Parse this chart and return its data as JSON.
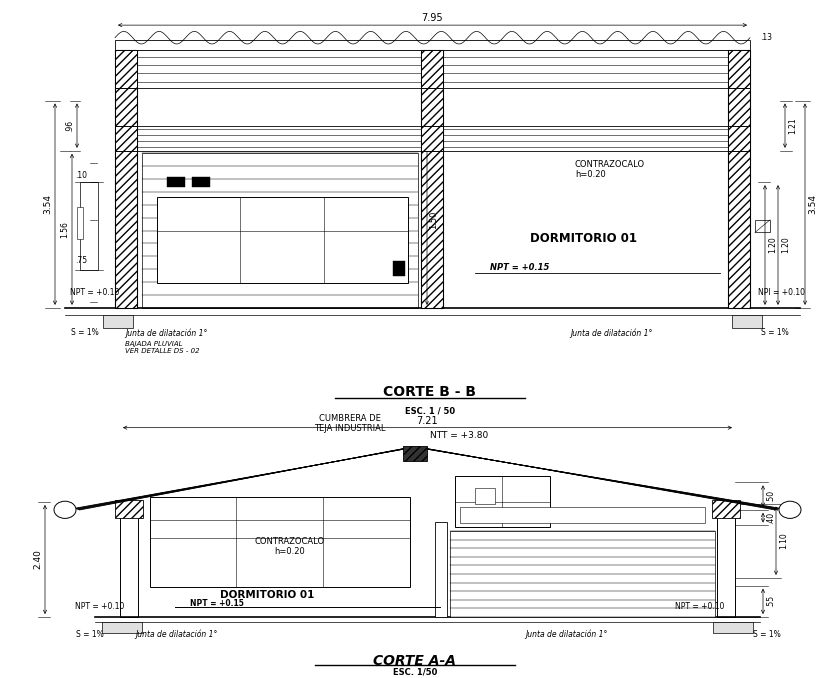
{
  "bg_color": "#ffffff",
  "lc": "#000000",
  "title1": "CORTE B - B",
  "sub1": "ESC. 1 / 50",
  "title2": "CORTE A-A",
  "sub2": "ESC. 1/50",
  "d_dormitorio": "DORMITORIO 01",
  "d_contra1": "CONTRAZOCALO\nh=0.20",
  "d_contra2": "CONTRAZOCALO\nh=0.20",
  "d_cumbre": "CUMBRERA DE\nTEJA INDUSTRIAL",
  "d_ntt": "NTT = +3.80",
  "d_junta": "Junta de dilatación 1°",
  "d_bajada": "BAJADA PLUVIAL\nVER DETALLE DS - 02",
  "d_795": "7.95",
  "d_721": "7.21",
  "d_354": "3.54",
  "d_156": "1.56",
  "d_96": ".96",
  "d_10": ".10",
  "d_75": ".75",
  "d_150": "1.50",
  "d_120": "1.20",
  "d_121": "1.21",
  "d_240": "2.40",
  "d_110": "1.10",
  "d_50": ".50",
  "d_40": ".40",
  "d_55": ".55",
  "d_s1": "S = 1%",
  "d_npt010": "NPT = +0.10",
  "d_npt015": "NPT = +0.15",
  "d_npi010": "NPI = +0.10",
  "d_13": ".13"
}
